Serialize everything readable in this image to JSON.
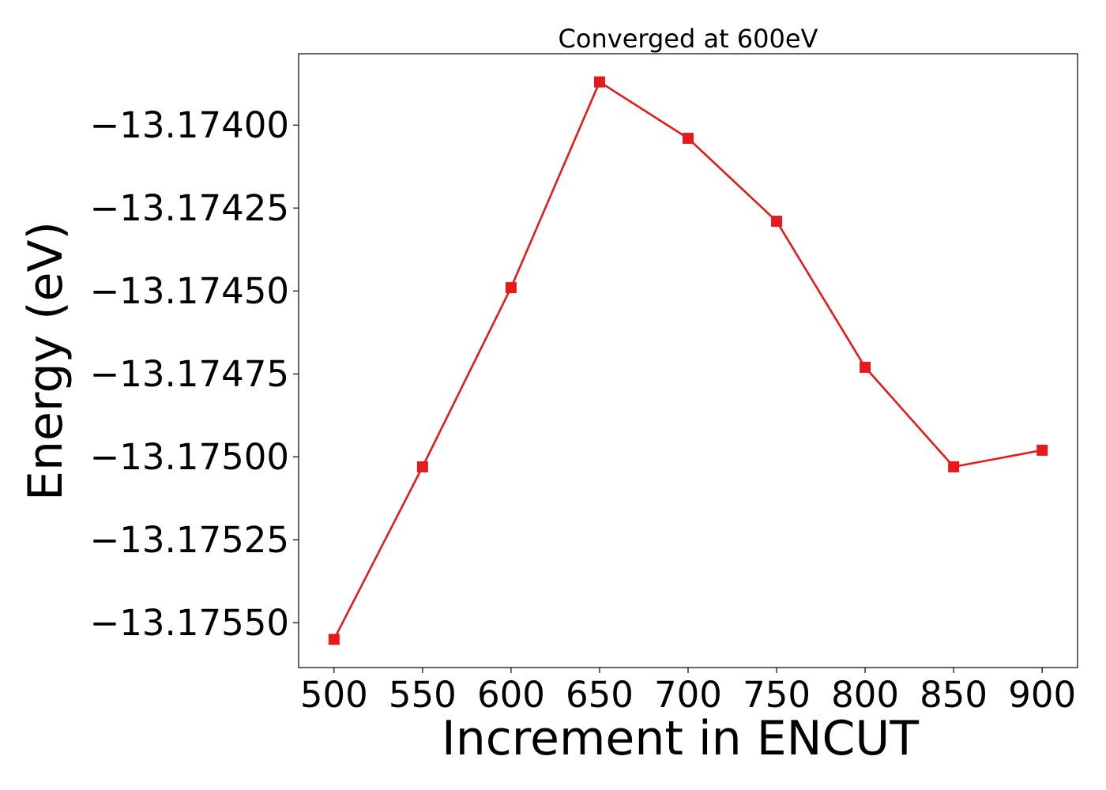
{
  "chart_data": {
    "type": "line",
    "title": "Converged at 600eV",
    "xlabel": "Increment in ENCUT",
    "ylabel": "Energy (eV)",
    "x": [
      500,
      550,
      600,
      650,
      700,
      750,
      800,
      850,
      900
    ],
    "series": [
      {
        "values": [
          -13.17555,
          -13.17503,
          -13.17449,
          -13.17387,
          -13.17404,
          -13.17429,
          -13.17473,
          -13.17503,
          -13.17498
        ],
        "color": "#e41a1c",
        "marker": "square"
      }
    ],
    "xticks": [
      500,
      550,
      600,
      650,
      700,
      750,
      800,
      850,
      900
    ],
    "xtick_labels": [
      "500",
      "550",
      "600",
      "650",
      "700",
      "750",
      "800",
      "850",
      "900"
    ],
    "yticks": [
      -13.174,
      -13.17425,
      -13.1745,
      -13.17475,
      -13.175,
      -13.17525,
      -13.1755
    ],
    "ytick_labels": [
      "−13.17400",
      "−13.17425",
      "−13.17450",
      "−13.17475",
      "−13.17500",
      "−13.17525",
      "−13.17550"
    ],
    "xlim": [
      480,
      920
    ],
    "ylim": [
      -13.175635,
      -13.173785
    ],
    "grid": false,
    "legend": "none"
  }
}
